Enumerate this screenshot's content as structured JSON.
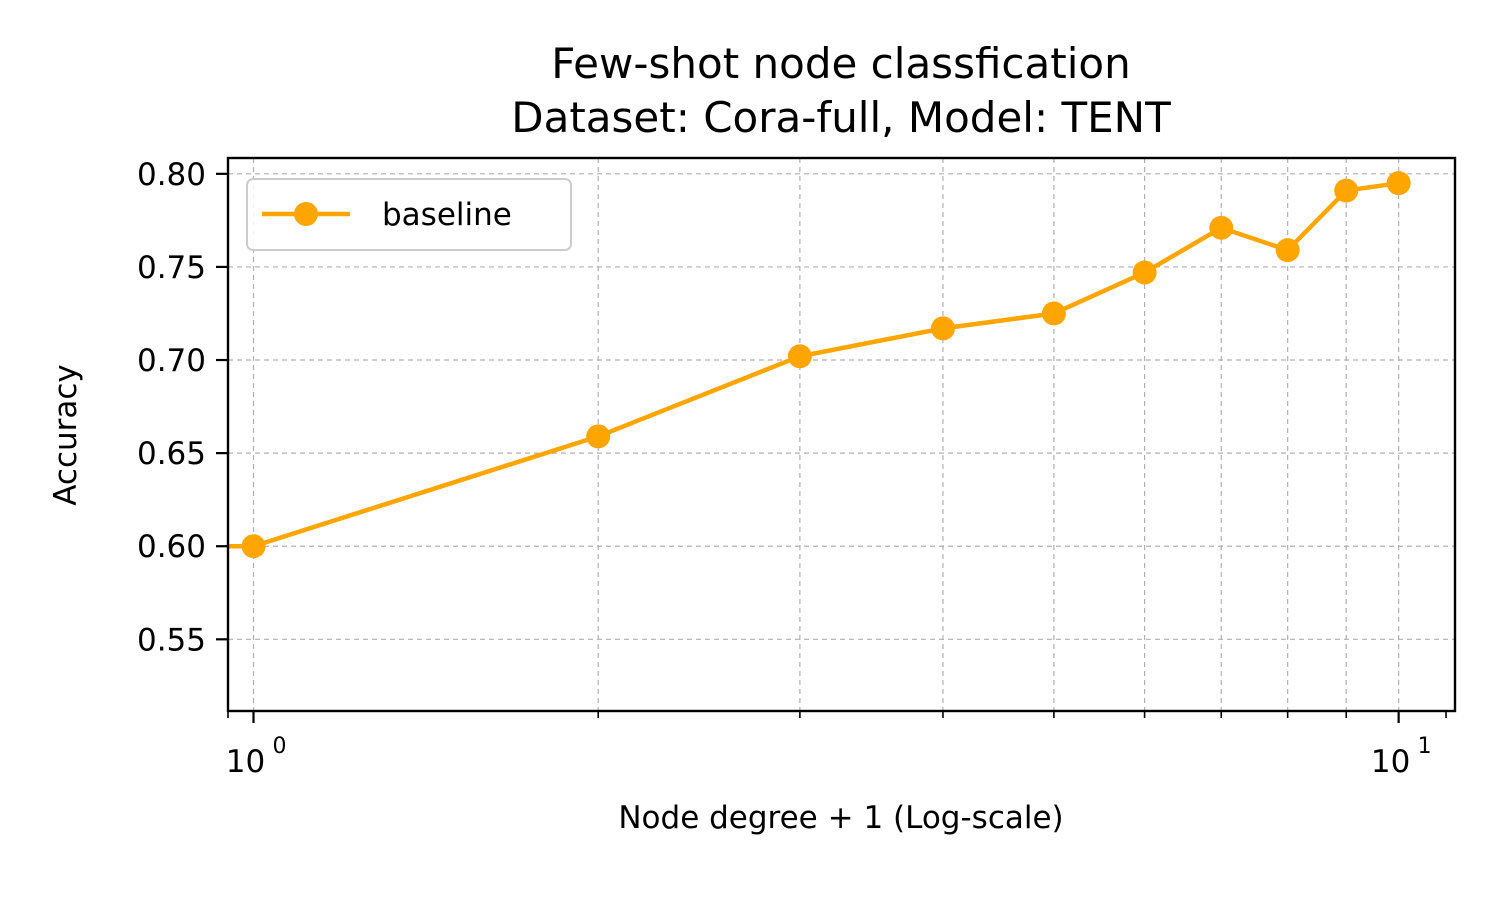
{
  "chart_data": {
    "type": "line",
    "title_line1": "Few-shot node classfication",
    "title_line2": "Dataset: Cora-full, Model: TENT",
    "xlabel": "Node degree + 1 (Log-scale)",
    "ylabel": "Accuracy",
    "xscale": "log",
    "xlim": [
      0.95,
      11.2
    ],
    "ylim": [
      0.5115,
      0.8085
    ],
    "xticks": [
      {
        "value": 1,
        "base": "10",
        "exp": "0"
      },
      {
        "value": 10,
        "base": "10",
        "exp": "1"
      }
    ],
    "yticks": [
      0.55,
      0.6,
      0.65,
      0.7,
      0.75,
      0.8
    ],
    "ytick_labels": [
      "0.55",
      "0.60",
      "0.65",
      "0.70",
      "0.75",
      "0.80"
    ],
    "grid": true,
    "legend_position": "top-left",
    "series": [
      {
        "name": "baseline",
        "color": "#FFA500",
        "x": [
          0.5,
          1,
          2,
          3,
          4,
          5,
          6,
          7,
          8,
          9,
          10
        ],
        "y": [
          0.6,
          0.6,
          0.659,
          0.702,
          0.717,
          0.725,
          0.747,
          0.771,
          0.759,
          0.791,
          0.795
        ]
      }
    ]
  }
}
